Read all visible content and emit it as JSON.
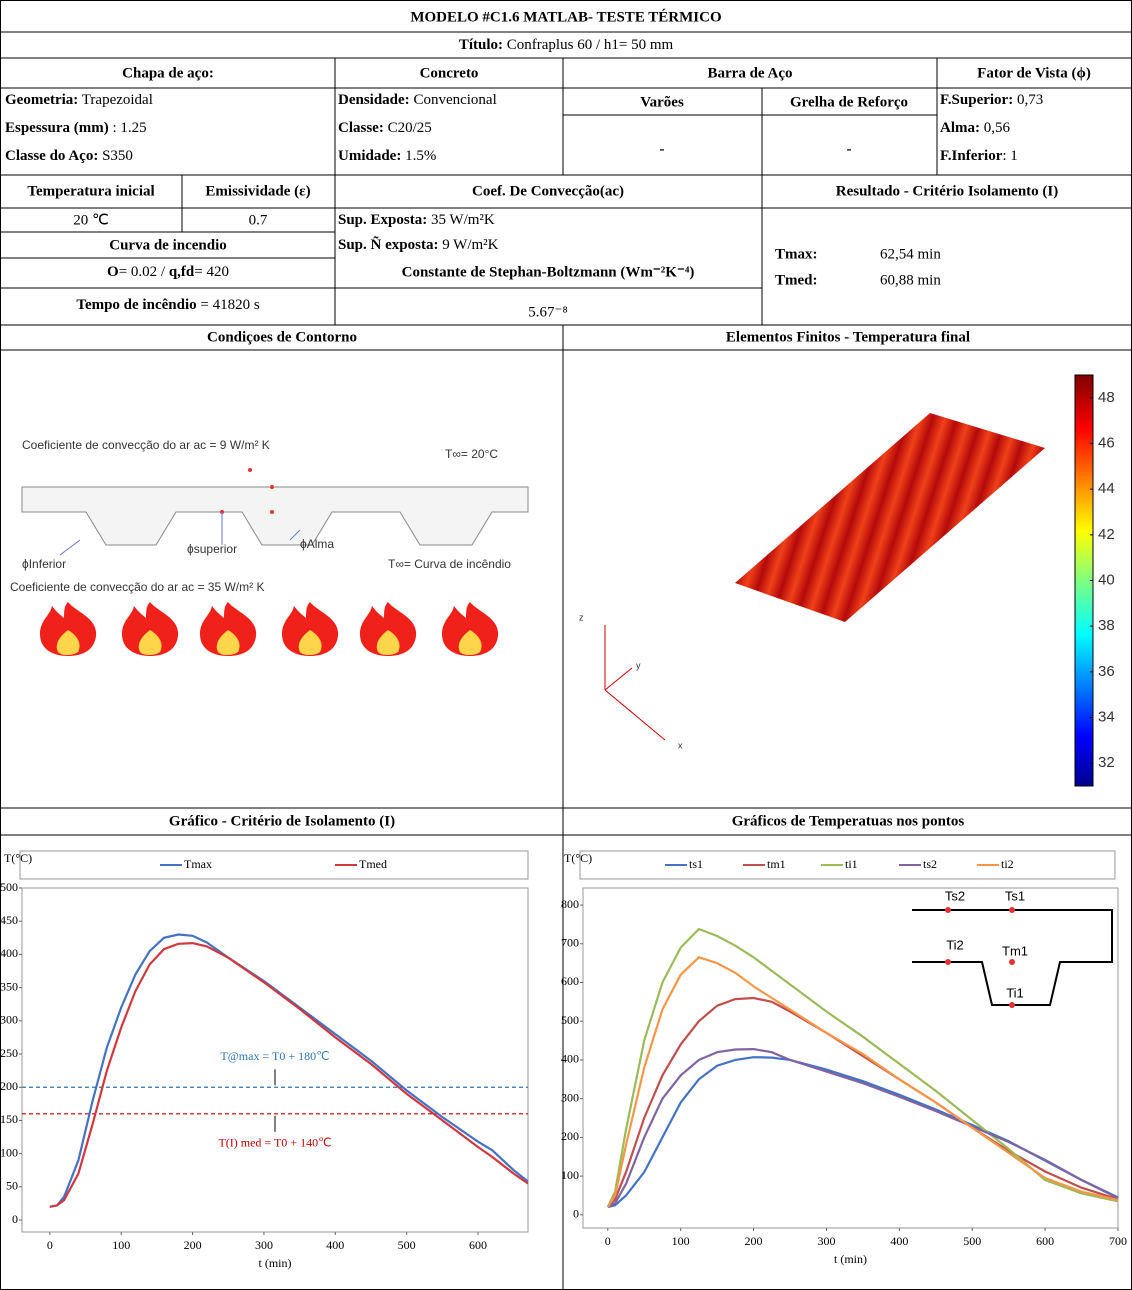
{
  "header": {
    "title": "MODELO #C1.6 MATLAB- TESTE TÉRMICO",
    "subtitle_label": "Título:",
    "subtitle_value": " Confraplus 60  /  h1= 50 mm"
  },
  "table": {
    "chapa": {
      "heading": "Chapa de aço:",
      "rows": [
        [
          "Geometria:",
          " Trapezoidal"
        ],
        [
          "Espessura (mm)",
          " : 1.25"
        ],
        [
          "Classe do Aço:",
          " S350"
        ]
      ]
    },
    "concreto": {
      "heading": "Concreto",
      "rows": [
        [
          "Densidade:",
          " Convencional"
        ],
        [
          "Classe:",
          " C20/25"
        ],
        [
          "Umidade:",
          " 1.5%"
        ]
      ]
    },
    "barra": {
      "heading": "Barra de Aço",
      "columns": [
        "Varões",
        "Grelha de Reforço"
      ],
      "values": [
        "-",
        "-"
      ]
    },
    "fator": {
      "heading": "Fator de Vista (ϕ)",
      "rows": [
        [
          "F.Superior:",
          " 0,73"
        ],
        [
          "Alma:",
          " 0,56"
        ],
        [
          "F.Inferior",
          ": 1"
        ]
      ]
    },
    "temp_inicial": {
      "heading": "Temperatura inicial",
      "value": "20   ℃"
    },
    "emissividade": {
      "heading": "Emissividade (ε)",
      "value": "0.7"
    },
    "conveccao": {
      "heading": "Coef. De Convecção(ac)",
      "rows": [
        [
          "Sup. Exposta:",
          " 35 W/m²K"
        ],
        [
          "Sup. Ñ exposta:",
          " 9 W/m²K"
        ]
      ]
    },
    "curva": {
      "heading": "Curva de incendio",
      "o_label": "O",
      "o_value": "= 0.02  /  ",
      "q_label": "q,fd",
      "q_value": "= 420"
    },
    "stefan": {
      "heading": "Constante de Stephan-Boltzmann (Wm⁻²K⁻⁴)",
      "value": "5.67⁻⁸"
    },
    "tempo": {
      "label": "Tempo de incêndio",
      "value": " = 41820 s"
    },
    "resultado": {
      "heading": "Resultado - Critério Isolamento (I)",
      "rows": [
        [
          "Tmax:",
          "62,54 min"
        ],
        [
          "Tmed:",
          "60,88 min"
        ]
      ]
    }
  },
  "sections": {
    "contorno": "Condiçoes de Contorno",
    "fem": "Elementos Finitos - Temperatura final"
  },
  "diagram": {
    "top_coef": "Coeficiente de convecção do ar ac = 9 W/m² K",
    "t_ambient": "T∞= 20°C",
    "phi_inferior": "ϕInferior",
    "phi_superior": "ϕsuperior",
    "phi_alma": "ϕAlma",
    "t_fire": "T∞= Curva de incêndio",
    "bottom_coef": "Coeficiente de convecção do ar ac = 35 W/m² K"
  },
  "fem": {
    "axes": [
      "z",
      "y",
      "x"
    ],
    "colorbar": {
      "lim": [
        31,
        49
      ],
      "ticks": [
        32,
        34,
        36,
        38,
        40,
        42,
        44,
        46,
        48
      ]
    }
  },
  "chart_data": [
    {
      "type": "line",
      "title": "Gráfico - Critério de Isolamento (I)",
      "y_label": "T(°C)",
      "x_label": "t (min)",
      "x": [
        0,
        10,
        20,
        40,
        60,
        80,
        100,
        120,
        140,
        160,
        180,
        200,
        220,
        250,
        300,
        350,
        400,
        450,
        500,
        550,
        600,
        620,
        650,
        670
      ],
      "series": [
        {
          "name": "Tmax",
          "color": "#4472c4",
          "values": [
            20,
            22,
            35,
            90,
            180,
            260,
            320,
            370,
            405,
            425,
            430,
            428,
            418,
            395,
            360,
            320,
            280,
            240,
            195,
            155,
            118,
            105,
            75,
            58
          ]
        },
        {
          "name": "Tmed",
          "color": "#d0383e",
          "values": [
            20,
            22,
            30,
            70,
            145,
            225,
            290,
            345,
            385,
            408,
            416,
            417,
            412,
            395,
            358,
            318,
            275,
            235,
            190,
            150,
            110,
            95,
            70,
            55
          ]
        }
      ],
      "reference_lines": [
        {
          "value": 200,
          "color": "#2e75b6",
          "label": "T@max = T0 + 180℃"
        },
        {
          "value": 160,
          "color": "#c00000",
          "label": "T(I) med = T0 + 140℃"
        }
      ],
      "xlim": [
        -39,
        670
      ],
      "ylim": [
        -18,
        500
      ],
      "xticks": [
        0,
        100,
        200,
        300,
        400,
        500,
        600
      ],
      "yticks": [
        0,
        50,
        100,
        150,
        200,
        250,
        300,
        350,
        400,
        450,
        500
      ],
      "legend": "top"
    },
    {
      "type": "line",
      "title": "Gráficos de Temperatuas nos pontos",
      "y_label": "T(°C)",
      "x_label": "t (min)",
      "x": [
        0,
        10,
        25,
        50,
        75,
        100,
        125,
        150,
        175,
        200,
        225,
        250,
        300,
        350,
        400,
        450,
        500,
        550,
        600,
        650,
        700
      ],
      "series": [
        {
          "name": "ts1",
          "color": "#4472c4",
          "values": [
            20,
            25,
            50,
            110,
            200,
            290,
            350,
            385,
            400,
            407,
            406,
            400,
            375,
            345,
            310,
            272,
            232,
            190,
            140,
            90,
            45
          ]
        },
        {
          "name": "tm1",
          "color": "#c0504d",
          "values": [
            20,
            40,
            110,
            250,
            360,
            440,
            500,
            540,
            557,
            560,
            550,
            525,
            470,
            410,
            350,
            290,
            225,
            165,
            112,
            70,
            40
          ]
        },
        {
          "name": "ti1",
          "color": "#9bbb59",
          "values": [
            20,
            60,
            220,
            450,
            600,
            690,
            738,
            720,
            695,
            665,
            630,
            595,
            525,
            460,
            390,
            320,
            245,
            170,
            90,
            55,
            35
          ]
        },
        {
          "name": "ts2",
          "color": "#8064a2",
          "values": [
            20,
            30,
            80,
            200,
            300,
            360,
            400,
            420,
            427,
            428,
            420,
            400,
            370,
            340,
            305,
            268,
            228,
            188,
            142,
            90,
            43
          ]
        },
        {
          "name": "ti2",
          "color": "#f79646",
          "values": [
            20,
            50,
            180,
            380,
            530,
            620,
            665,
            650,
            625,
            590,
            560,
            530,
            470,
            415,
            350,
            290,
            225,
            160,
            95,
            60,
            38
          ]
        }
      ],
      "inset_labels": [
        "Ts2",
        "Ts1",
        "Ti2",
        "Tm1",
        "Ti1"
      ],
      "xlim": [
        -34,
        700
      ],
      "ylim": [
        -34,
        844
      ],
      "xticks": [
        0,
        100,
        200,
        300,
        400,
        500,
        600,
        700
      ],
      "yticks": [
        0,
        100,
        200,
        300,
        400,
        500,
        600,
        700,
        800
      ],
      "legend": "top"
    }
  ]
}
